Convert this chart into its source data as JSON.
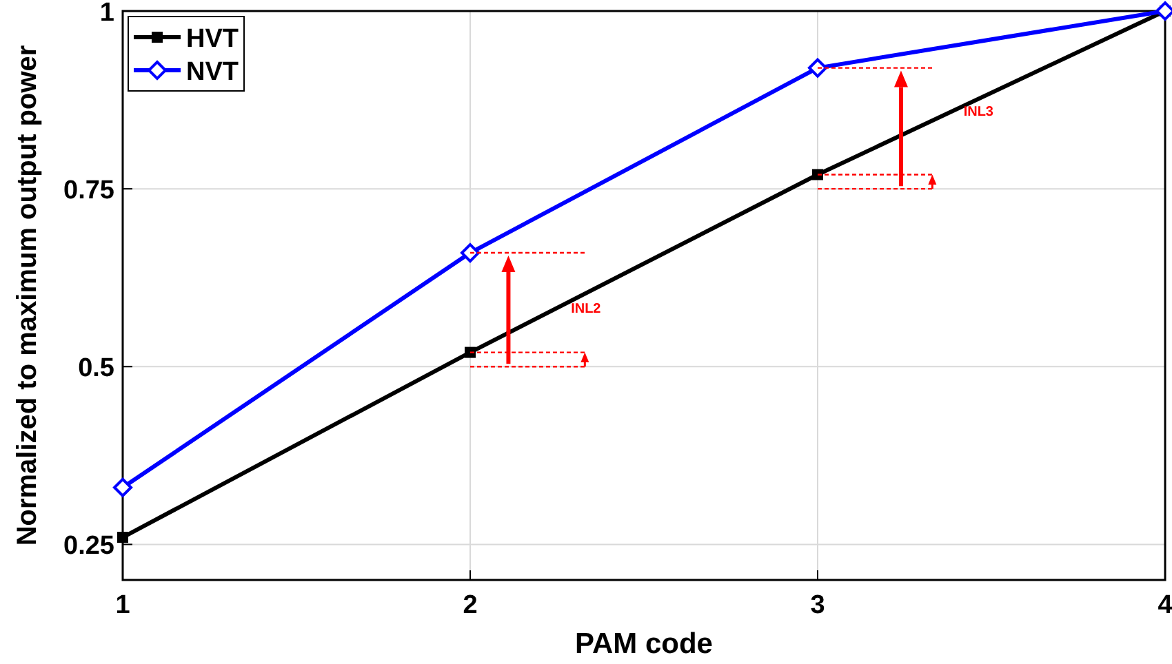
{
  "chart_data": {
    "type": "line",
    "xlabel": "PAM code",
    "ylabel": "Normalized to maximum output power",
    "x": [
      1,
      2,
      3,
      4
    ],
    "xlim": [
      1,
      4
    ],
    "xticks": [
      1,
      2,
      3,
      4
    ],
    "ylim": [
      0.2,
      1
    ],
    "yticks": [
      0.25,
      0.5,
      0.75,
      1
    ],
    "grid": true,
    "legend": "top left",
    "line_style": "solid",
    "series": [
      {
        "name": "HVT",
        "color": "#000000",
        "marker": "square",
        "values": [
          0.26,
          0.52,
          0.77,
          1
        ]
      },
      {
        "name": "NVT",
        "color": "#0000ff",
        "marker": "diamond",
        "values": [
          0.33,
          0.66,
          0.92,
          1
        ]
      }
    ],
    "annotations": [
      "INL2",
      "INL3"
    ]
  }
}
